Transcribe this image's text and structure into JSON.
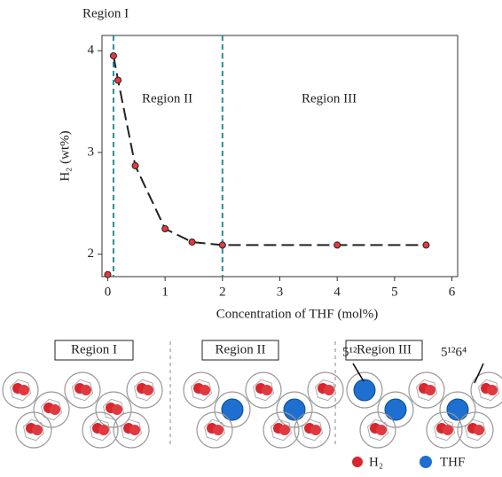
{
  "chart_data": {
    "type": "line",
    "xlabel": "Concentration of THF (mol%)",
    "ylabel": "H₂ (wt%)",
    "annotations": [
      "Region I",
      "Region II",
      "Region III"
    ],
    "series": [
      {
        "color": "#e8383d",
        "line": true,
        "x": [
          0.1,
          0.18,
          0.48,
          1,
          1.47,
          2,
          4,
          5.55
        ],
        "values": [
          3.95,
          3.71,
          2.87,
          2.25,
          2.12,
          2.09,
          2.09,
          2.09
        ]
      },
      {
        "color": "#e8383d",
        "line": false,
        "x": [
          0
        ],
        "values": [
          1.8
        ]
      }
    ],
    "vlines": [
      0.1,
      2
    ],
    "vline_color": "#2a8f9a",
    "xlim": [
      -0.1,
      6.1
    ],
    "ylim": [
      1.78,
      4.15
    ],
    "xticks": [
      0,
      1,
      2,
      3,
      4,
      5,
      6
    ],
    "yticks": [
      2,
      3,
      4
    ],
    "grid": false
  },
  "panels": [
    {
      "label": "Region I"
    },
    {
      "label": "Region II"
    },
    {
      "label": "Region III"
    }
  ],
  "callouts": [
    "5¹²",
    "5¹²6⁴"
  ],
  "legend": [
    "H₂",
    "THF"
  ]
}
